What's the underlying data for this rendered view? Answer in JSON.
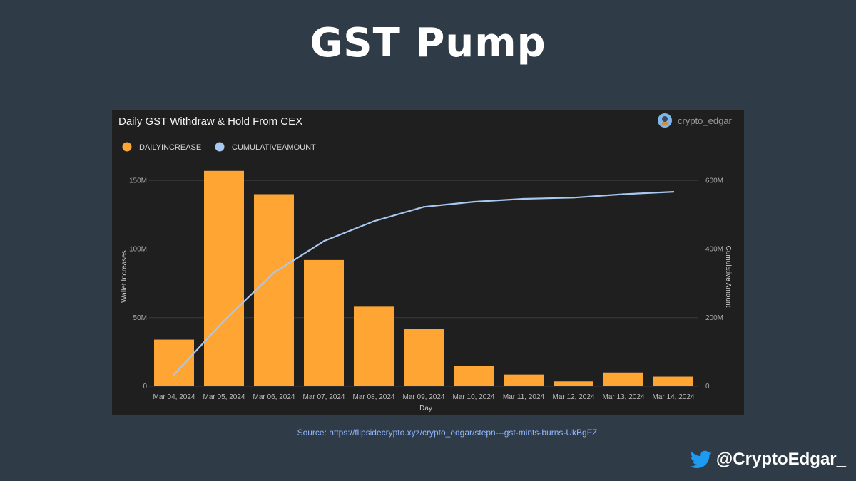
{
  "title": "GST Pump",
  "source_text": "Source: https://flipsidecrypto.xyz/crypto_edgar/stepn---gst-mints-burns-UkBgFZ",
  "social": {
    "handle": "@CryptoEdgar_",
    "icon": "twitter-bird-icon",
    "icon_color": "#1d9bf0"
  },
  "chart_data": {
    "type": "bar",
    "title": "Daily GST Withdraw & Hold From CEX",
    "author": "crypto_edgar",
    "xlabel": "Day",
    "ylabel": "Wallet Increases",
    "y2label": "Cumulative Amount",
    "categories": [
      "Mar 04, 2024",
      "Mar 05, 2024",
      "Mar 06, 2024",
      "Mar 07, 2024",
      "Mar 08, 2024",
      "Mar 09, 2024",
      "Mar 10, 2024",
      "Mar 11, 2024",
      "Mar 12, 2024",
      "Mar 13, 2024",
      "Mar 14, 2024"
    ],
    "ylim": [
      0,
      160000000
    ],
    "y2lim": [
      0,
      640000000
    ],
    "yticks": [
      0,
      50000000,
      100000000,
      150000000
    ],
    "ytick_labels": [
      "0",
      "50M",
      "100M",
      "150M"
    ],
    "y2ticks": [
      0,
      200000000,
      400000000,
      600000000
    ],
    "y2tick_labels": [
      "0",
      "200M",
      "400M",
      "600M"
    ],
    "grid": true,
    "legend_position": "top-left",
    "series": [
      {
        "name": "DAILYINCREASE",
        "type": "bar",
        "axis": "left",
        "color": "#ffa533",
        "values": [
          34000000,
          157000000,
          140000000,
          92000000,
          58000000,
          42000000,
          15000000,
          8500000,
          3500000,
          10000000,
          7000000
        ]
      },
      {
        "name": "CUMULATIVEAMOUNT",
        "type": "line",
        "axis": "right",
        "color": "#a8c8f0",
        "values": [
          34000000,
          191000000,
          331000000,
          423000000,
          481000000,
          523000000,
          538000000,
          546500000,
          550000000,
          560000000,
          567000000
        ]
      }
    ]
  }
}
